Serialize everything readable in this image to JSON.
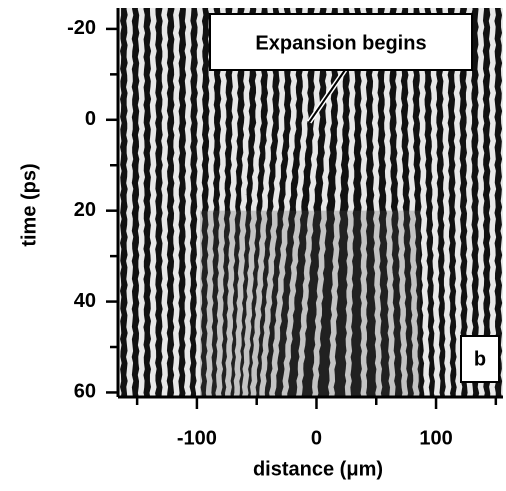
{
  "chart_data": {
    "type": "image",
    "xlabel": "distance (μm)",
    "ylabel": "time (ps)",
    "xlim": [
      -166,
      156
    ],
    "ylim": [
      61,
      -24.6
    ],
    "xticks": [
      -100,
      0,
      100
    ],
    "xminor": [
      -150,
      -50,
      50,
      150
    ],
    "yticks": [
      -20,
      0,
      20,
      40,
      60
    ],
    "yminor": [
      -10,
      10,
      30,
      50
    ],
    "annotations": [
      {
        "text": "Expansion begins",
        "x": -6,
        "y": 0.5
      }
    ],
    "panel_label": "b"
  }
}
